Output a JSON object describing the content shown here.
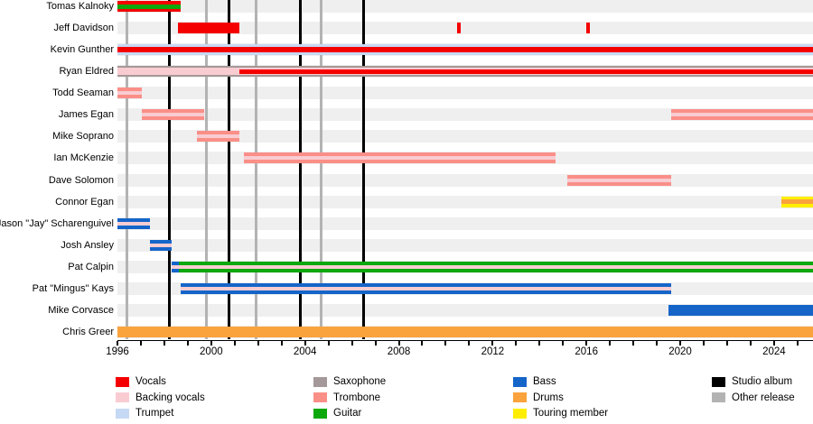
{
  "chart_data": {
    "type": "timeline",
    "description": "Band members timeline (gantt-style), roles shown as colored bars with secondary-role stripes; vertical lines mark releases",
    "axis": {
      "year_start": 1996,
      "year_end": 2025.7,
      "tick_step": 1,
      "labeled_years": [
        "1996",
        "2000",
        "2004",
        "2008",
        "2012",
        "2016",
        "2020",
        "2024"
      ],
      "grid": "release-lines-only",
      "legend_position": "bottom"
    },
    "colors": {
      "vocals": "#f40000",
      "backing_vocals": "#f9ccd2",
      "trumpet": "#c6d9f4",
      "saxophone": "#a59898",
      "trombone": "#fa8f88",
      "guitar": "#0ca80c",
      "bass": "#1565c9",
      "drums": "#faa23c",
      "touring": "#ffee00",
      "studio": "#000000",
      "other": "#b3b3b3",
      "track": "#efefef"
    },
    "members": [
      {
        "name": "Tomas Kalnoky",
        "bars": [
          {
            "from": 1996,
            "till": 1998.7,
            "role": "vocals"
          }
        ],
        "stripes": [
          {
            "from": 1996,
            "till": 1998.7,
            "role": "guitar",
            "h": 5
          }
        ]
      },
      {
        "name": "Jeff Davidson",
        "bars": [
          {
            "from": 1998.6,
            "till": 2001.2,
            "role": "vocals"
          },
          {
            "from": 2010.5,
            "till": 2010.65,
            "role": "vocals"
          },
          {
            "from": 2016.0,
            "till": 2016.15,
            "role": "vocals"
          }
        ],
        "stripes": []
      },
      {
        "name": "Kevin Gunther",
        "bars": [
          {
            "from": 1996,
            "till": 2025.7,
            "role": "trumpet"
          }
        ],
        "stripes": [
          {
            "from": 1996,
            "till": 2025.7,
            "role": "vocals",
            "h": 6
          }
        ]
      },
      {
        "name": "Ryan Eldred",
        "bars": [
          {
            "from": 1996,
            "till": 2025.7,
            "role": "saxophone"
          }
        ],
        "stripes": [
          {
            "from": 1996,
            "till": 2025.7,
            "role": "backing_vocals",
            "h": 8
          },
          {
            "from": 2001.2,
            "till": 2025.7,
            "role": "vocals",
            "h": 5
          }
        ]
      },
      {
        "name": "Todd Seaman",
        "bars": [
          {
            "from": 1996,
            "till": 1997.05,
            "role": "trombone"
          }
        ],
        "stripes": [
          {
            "from": 1996,
            "till": 1997.05,
            "role": "backing_vocals",
            "h": 4
          }
        ]
      },
      {
        "name": "James Egan",
        "bars": [
          {
            "from": 1997.05,
            "till": 1999.7,
            "role": "trombone"
          },
          {
            "from": 2019.6,
            "till": 2025.7,
            "role": "trombone"
          }
        ],
        "stripes": [
          {
            "from": 1997.05,
            "till": 1999.7,
            "role": "backing_vocals",
            "h": 4
          },
          {
            "from": 2019.6,
            "till": 2025.7,
            "role": "backing_vocals",
            "h": 4
          }
        ]
      },
      {
        "name": "Mike Soprano",
        "bars": [
          {
            "from": 1999.4,
            "till": 2001.2,
            "role": "trombone"
          }
        ],
        "stripes": [
          {
            "from": 1999.4,
            "till": 2001.2,
            "role": "backing_vocals",
            "h": 4
          }
        ]
      },
      {
        "name": "Ian McKenzie",
        "bars": [
          {
            "from": 2001.4,
            "till": 2014.7,
            "role": "trombone"
          }
        ],
        "stripes": [
          {
            "from": 2001.4,
            "till": 2014.7,
            "role": "backing_vocals",
            "h": 4
          }
        ]
      },
      {
        "name": "Dave Solomon",
        "bars": [
          {
            "from": 2015.2,
            "till": 2019.6,
            "role": "trombone"
          }
        ],
        "stripes": [
          {
            "from": 2015.2,
            "till": 2019.6,
            "role": "backing_vocals",
            "h": 4
          }
        ]
      },
      {
        "name": "Connor Egan",
        "bars": [
          {
            "from": 2024.3,
            "till": 2025.7,
            "role": "touring"
          }
        ],
        "stripes": [
          {
            "from": 2024.3,
            "till": 2025.7,
            "role": "drums",
            "h": 5
          }
        ]
      },
      {
        "name": "Jason \"Jay\" Scharenguivel",
        "bars": [
          {
            "from": 1996,
            "till": 1997.4,
            "role": "bass"
          }
        ],
        "stripes": [
          {
            "from": 1996,
            "till": 1997.4,
            "role": "backing_vocals",
            "h": 4
          }
        ]
      },
      {
        "name": "Josh Ansley",
        "bars": [
          {
            "from": 1997.4,
            "till": 1998.3,
            "role": "bass"
          }
        ],
        "stripes": [
          {
            "from": 1997.4,
            "till": 1998.3,
            "role": "backing_vocals",
            "h": 4
          }
        ]
      },
      {
        "name": "Pat Calpin",
        "bars": [
          {
            "from": 1998.3,
            "till": 1998.62,
            "role": "bass"
          },
          {
            "from": 1998.62,
            "till": 2025.7,
            "role": "guitar"
          }
        ],
        "stripes": [
          {
            "from": 1998.3,
            "till": 2025.7,
            "role": "backing_vocals",
            "h": 4
          }
        ]
      },
      {
        "name": "Pat \"Mingus\" Kays",
        "bars": [
          {
            "from": 1998.7,
            "till": 2019.6,
            "role": "bass"
          }
        ],
        "stripes": [
          {
            "from": 1998.7,
            "till": 2019.6,
            "role": "backing_vocals",
            "h": 4
          }
        ]
      },
      {
        "name": "Mike Corvasce",
        "bars": [
          {
            "from": 2019.5,
            "till": 2025.7,
            "role": "bass"
          }
        ],
        "stripes": []
      },
      {
        "name": "Chris Greer",
        "bars": [
          {
            "from": 1996,
            "till": 2025.7,
            "role": "drums"
          }
        ],
        "stripes": []
      }
    ],
    "releases": [
      {
        "year": 1996.4,
        "type": "other"
      },
      {
        "year": 1998.2,
        "type": "studio"
      },
      {
        "year": 1999.8,
        "type": "other"
      },
      {
        "year": 2000.75,
        "type": "studio"
      },
      {
        "year": 2001.9,
        "type": "other"
      },
      {
        "year": 2003.8,
        "type": "studio"
      },
      {
        "year": 2004.7,
        "type": "other"
      },
      {
        "year": 2006.5,
        "type": "studio"
      }
    ],
    "legend": {
      "columns": [
        {
          "items": [
            {
              "role": "vocals",
              "label": "Vocals"
            },
            {
              "role": "backing_vocals",
              "label": "Backing vocals"
            },
            {
              "role": "trumpet",
              "label": "Trumpet"
            }
          ]
        },
        {
          "items": [
            {
              "role": "saxophone",
              "label": "Saxophone"
            },
            {
              "role": "trombone",
              "label": "Trombone"
            },
            {
              "role": "guitar",
              "label": "Guitar"
            }
          ]
        },
        {
          "items": [
            {
              "role": "bass",
              "label": "Bass"
            },
            {
              "role": "drums",
              "label": "Drums"
            },
            {
              "role": "touring",
              "label": "Touring member"
            }
          ]
        },
        {
          "items": [
            {
              "role": "studio",
              "label": "Studio album"
            },
            {
              "role": "other",
              "label": "Other release"
            }
          ]
        }
      ]
    }
  }
}
